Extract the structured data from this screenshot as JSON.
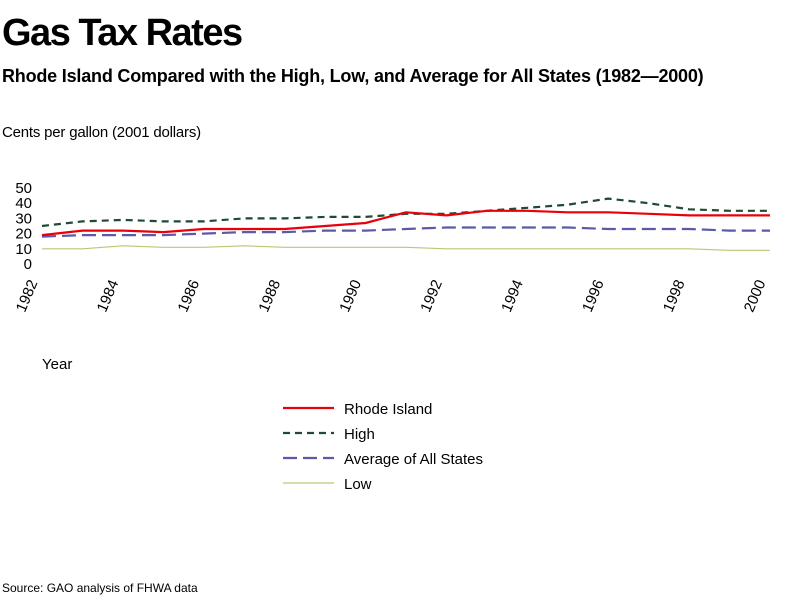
{
  "chart_data": {
    "type": "line",
    "title": "Gas Tax Rates",
    "subtitle": "Rhode Island Compared with the High, Low, and Average for All States (1982—2000)",
    "ylabel": "Cents per gallon (2001 dollars)",
    "xlabel": "Year",
    "source": "Source: GAO analysis of FHWA data",
    "ylim": [
      0,
      50
    ],
    "yticks": [
      0,
      10,
      20,
      30,
      40,
      50
    ],
    "xlim": [
      1982,
      2000
    ],
    "xticks": [
      1982,
      1984,
      1986,
      1988,
      1990,
      1992,
      1994,
      1996,
      1998,
      2000
    ],
    "grid": false,
    "legend_position": "bottom-center",
    "x": [
      1982,
      1983,
      1984,
      1985,
      1986,
      1987,
      1988,
      1989,
      1990,
      1991,
      1992,
      1993,
      1994,
      1995,
      1996,
      1997,
      1998,
      1999,
      2000
    ],
    "series": [
      {
        "name": "Rhode Island",
        "color": "#e8000b",
        "style": "solid",
        "values": [
          19,
          22,
          22,
          21,
          23,
          23,
          23,
          25,
          27,
          34,
          32,
          35,
          35,
          34,
          34,
          33,
          32,
          32,
          32
        ]
      },
      {
        "name": "High",
        "color": "#1f4a33",
        "style": "dashed",
        "values": [
          25,
          28,
          29,
          28,
          28,
          30,
          30,
          31,
          31,
          33,
          33,
          35,
          37,
          39,
          43,
          40,
          36,
          35,
          35
        ]
      },
      {
        "name": "Average of All States",
        "color": "#5a5aa8",
        "style": "longdash",
        "values": [
          18,
          19,
          19,
          19,
          20,
          21,
          21,
          22,
          22,
          23,
          24,
          24,
          24,
          24,
          23,
          23,
          23,
          22,
          22
        ]
      },
      {
        "name": "Low",
        "color": "#b5c97a",
        "style": "solid",
        "values": [
          10,
          10,
          12,
          11,
          11,
          12,
          11,
          11,
          11,
          11,
          10,
          10,
          10,
          10,
          10,
          10,
          10,
          9,
          9
        ]
      }
    ]
  }
}
